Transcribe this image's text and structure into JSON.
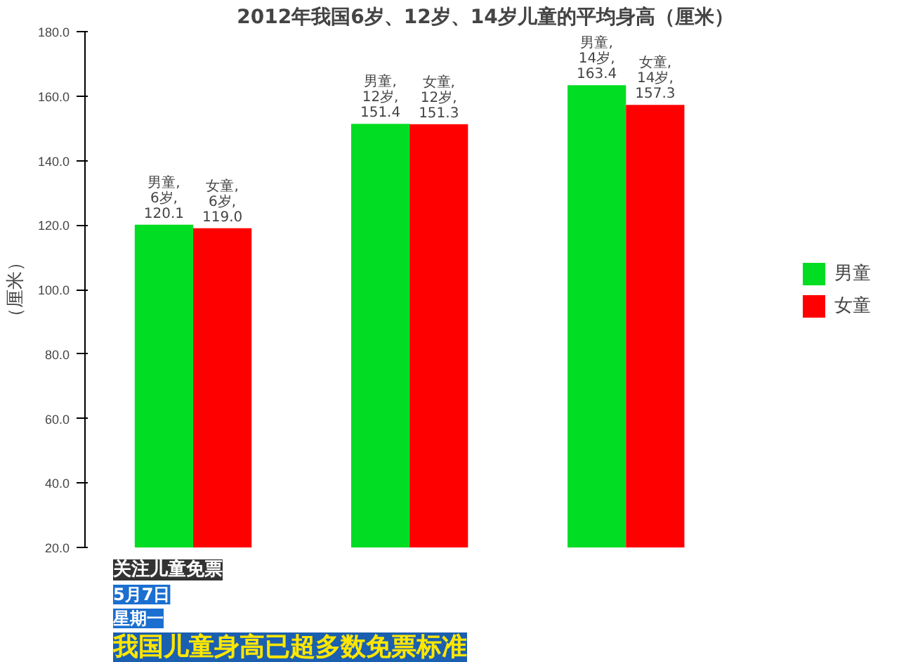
{
  "chart_data": {
    "type": "bar",
    "title": "2012年我国6岁、12岁、14岁儿童的平均身高（厘米）",
    "ylabel": "（厘米）",
    "categories": [
      null,
      null,
      null
    ],
    "series": [
      {
        "name": "男童",
        "color": "#00dd22",
        "values": [
          120.1,
          151.4,
          163.4
        ],
        "value_labels": [
          "男童, 6岁, 120.1",
          "男童, 12岁, 151.4",
          "男童, 14岁, 163.4"
        ]
      },
      {
        "name": "女童",
        "color": "#ff0000",
        "values": [
          119.0,
          151.3,
          157.3
        ],
        "value_labels": [
          "女童, 6岁, 119.0",
          "女童, 12岁, 151.3",
          "女童, 14岁, 157.3"
        ]
      }
    ],
    "ylim": [
      20,
      180
    ],
    "yticks": [
      {
        "value": 20,
        "label": "20.0"
      },
      {
        "value": 40,
        "label": "40.0"
      },
      {
        "value": 60,
        "label": "60.0"
      },
      {
        "value": 80,
        "label": "80.0"
      },
      {
        "value": 100,
        "label": "100.0"
      },
      {
        "value": 120,
        "label": "120.0"
      },
      {
        "value": 140,
        "label": "140.0"
      },
      {
        "value": 160,
        "label": "160.0"
      },
      {
        "value": 180,
        "label": "180.0"
      }
    ],
    "grid": false,
    "legend": "right",
    "annotations": [
      "关注儿童免票",
      "5月7日",
      "星期一",
      "我国儿童身高已超多数免票标准"
    ]
  }
}
